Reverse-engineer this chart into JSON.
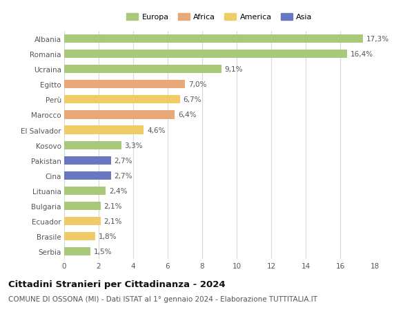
{
  "categories": [
    "Albania",
    "Romania",
    "Ucraina",
    "Egitto",
    "Perù",
    "Marocco",
    "El Salvador",
    "Kosovo",
    "Pakistan",
    "Cina",
    "Lituania",
    "Bulgaria",
    "Ecuador",
    "Brasile",
    "Serbia"
  ],
  "values": [
    17.3,
    16.4,
    9.1,
    7.0,
    6.7,
    6.4,
    4.6,
    3.3,
    2.7,
    2.7,
    2.4,
    2.1,
    2.1,
    1.8,
    1.5
  ],
  "labels": [
    "17,3%",
    "16,4%",
    "9,1%",
    "7,0%",
    "6,7%",
    "6,4%",
    "4,6%",
    "3,3%",
    "2,7%",
    "2,7%",
    "2,4%",
    "2,1%",
    "2,1%",
    "1,8%",
    "1,5%"
  ],
  "continents": [
    "Europa",
    "Europa",
    "Europa",
    "Africa",
    "America",
    "Africa",
    "America",
    "Europa",
    "Asia",
    "Asia",
    "Europa",
    "Europa",
    "America",
    "America",
    "Europa"
  ],
  "colors": {
    "Europa": "#a8c87a",
    "Africa": "#e8a878",
    "America": "#f0cc68",
    "Asia": "#6878c0"
  },
  "legend_order": [
    "Europa",
    "Africa",
    "America",
    "Asia"
  ],
  "title": "Cittadini Stranieri per Cittadinanza - 2024",
  "subtitle": "COMUNE DI OSSONA (MI) - Dati ISTAT al 1° gennaio 2024 - Elaborazione TUTTITALIA.IT",
  "xlim": [
    0,
    18
  ],
  "xticks": [
    0,
    2,
    4,
    6,
    8,
    10,
    12,
    14,
    16,
    18
  ],
  "background_color": "#ffffff",
  "grid_color": "#d8d8d8",
  "bar_height": 0.55,
  "label_fontsize": 7.5,
  "tick_fontsize": 7.5,
  "title_fontsize": 9.5,
  "subtitle_fontsize": 7.5
}
